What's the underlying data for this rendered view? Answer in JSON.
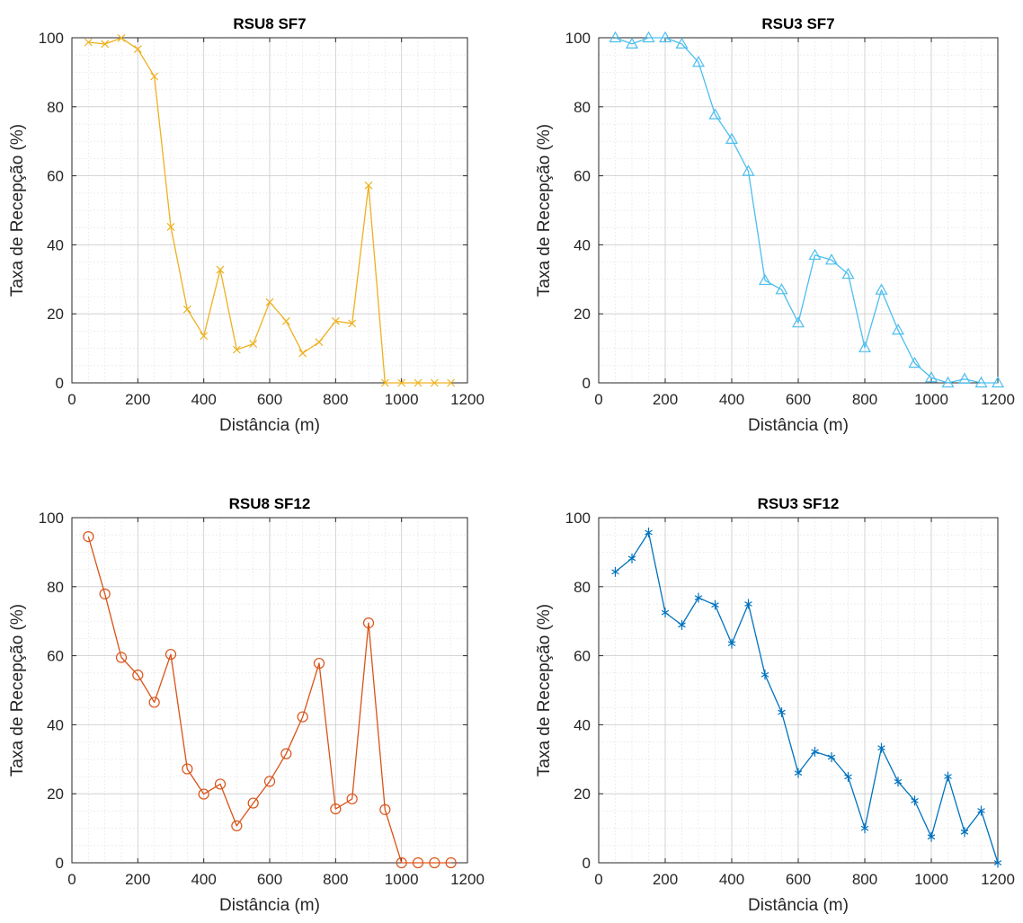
{
  "chart_data": [
    {
      "type": "line",
      "title": "RSU8 SF7",
      "xlabel": "Distância (m)",
      "ylabel": "Taxa de Recepção (%)",
      "xlim": [
        0,
        1200
      ],
      "ylim": [
        0,
        100
      ],
      "xticks": [
        0,
        200,
        400,
        600,
        800,
        1000,
        1200
      ],
      "yticks": [
        0,
        20,
        40,
        60,
        80,
        100
      ],
      "grid": true,
      "minor_grid": true,
      "marker": "x",
      "color": "#EDB120",
      "x": [
        50,
        100,
        150,
        200,
        250,
        300,
        350,
        400,
        450,
        500,
        550,
        600,
        650,
        700,
        750,
        800,
        850,
        900,
        950,
        1000,
        1050,
        1100,
        1150
      ],
      "y": [
        98.7,
        98.2,
        99.9,
        96.7,
        88.8,
        45.2,
        21.3,
        13.6,
        32.8,
        9.6,
        11.3,
        23.4,
        17.9,
        8.6,
        11.8,
        17.9,
        17.2,
        57.2,
        0,
        0,
        0,
        0,
        0
      ]
    },
    {
      "type": "line",
      "title": "RSU3 SF7",
      "xlabel": "Distância (m)",
      "ylabel": "Taxa de Recepção (%)",
      "xlim": [
        0,
        1200
      ],
      "ylim": [
        0,
        100
      ],
      "xticks": [
        0,
        200,
        400,
        600,
        800,
        1000,
        1200
      ],
      "yticks": [
        0,
        20,
        40,
        60,
        80,
        100
      ],
      "grid": true,
      "minor_grid": true,
      "marker": "triangle",
      "color": "#4DBEEE",
      "x": [
        50,
        100,
        150,
        200,
        250,
        300,
        350,
        400,
        450,
        500,
        550,
        600,
        650,
        700,
        750,
        800,
        850,
        900,
        950,
        1000,
        1050,
        1100,
        1150,
        1200
      ],
      "y": [
        100,
        98.2,
        100,
        100,
        98.2,
        92.9,
        77.7,
        70.6,
        61.3,
        29.7,
        27.0,
        17.4,
        37.0,
        35.6,
        31.5,
        10.2,
        26.9,
        15.3,
        5.7,
        1.5,
        0,
        1.1,
        0,
        0
      ]
    },
    {
      "type": "line",
      "title": "RSU8 SF12",
      "xlabel": "Distância (m)",
      "ylabel": "Taxa de Recepção (%)",
      "xlim": [
        0,
        1200
      ],
      "ylim": [
        0,
        100
      ],
      "xticks": [
        0,
        200,
        400,
        600,
        800,
        1000,
        1200
      ],
      "yticks": [
        0,
        20,
        40,
        60,
        80,
        100
      ],
      "grid": true,
      "minor_grid": true,
      "marker": "circle",
      "color": "#D95319",
      "x": [
        50,
        100,
        150,
        200,
        250,
        300,
        350,
        400,
        450,
        500,
        550,
        600,
        650,
        700,
        750,
        800,
        850,
        900,
        950,
        1000,
        1050,
        1100,
        1150
      ],
      "y": [
        94.5,
        77.9,
        59.5,
        54.4,
        46.5,
        60.4,
        27.2,
        19.9,
        22.8,
        10.7,
        17.3,
        23.6,
        31.6,
        42.3,
        57.8,
        15.6,
        18.5,
        69.5,
        15.4,
        0,
        0,
        0,
        0
      ]
    },
    {
      "type": "line",
      "title": "RSU3 SF12",
      "xlabel": "Distância (m)",
      "ylabel": "Taxa de Recepção (%)",
      "xlim": [
        0,
        1200
      ],
      "ylim": [
        0,
        100
      ],
      "xticks": [
        0,
        200,
        400,
        600,
        800,
        1000,
        1200
      ],
      "yticks": [
        0,
        20,
        40,
        60,
        80,
        100
      ],
      "grid": true,
      "minor_grid": true,
      "marker": "asterisk",
      "color": "#0072BD",
      "x": [
        50,
        100,
        150,
        200,
        250,
        300,
        350,
        400,
        450,
        500,
        550,
        600,
        650,
        700,
        750,
        800,
        850,
        900,
        950,
        1000,
        1050,
        1100,
        1150,
        1200
      ],
      "y": [
        84.3,
        88.2,
        95.7,
        72.5,
        68.9,
        76.8,
        74.7,
        63.5,
        75.0,
        54.5,
        43.6,
        26.0,
        32.2,
        30.6,
        24.9,
        10.0,
        33.3,
        23.5,
        18.0,
        7.5,
        25.0,
        8.9,
        15.1,
        0
      ]
    }
  ]
}
